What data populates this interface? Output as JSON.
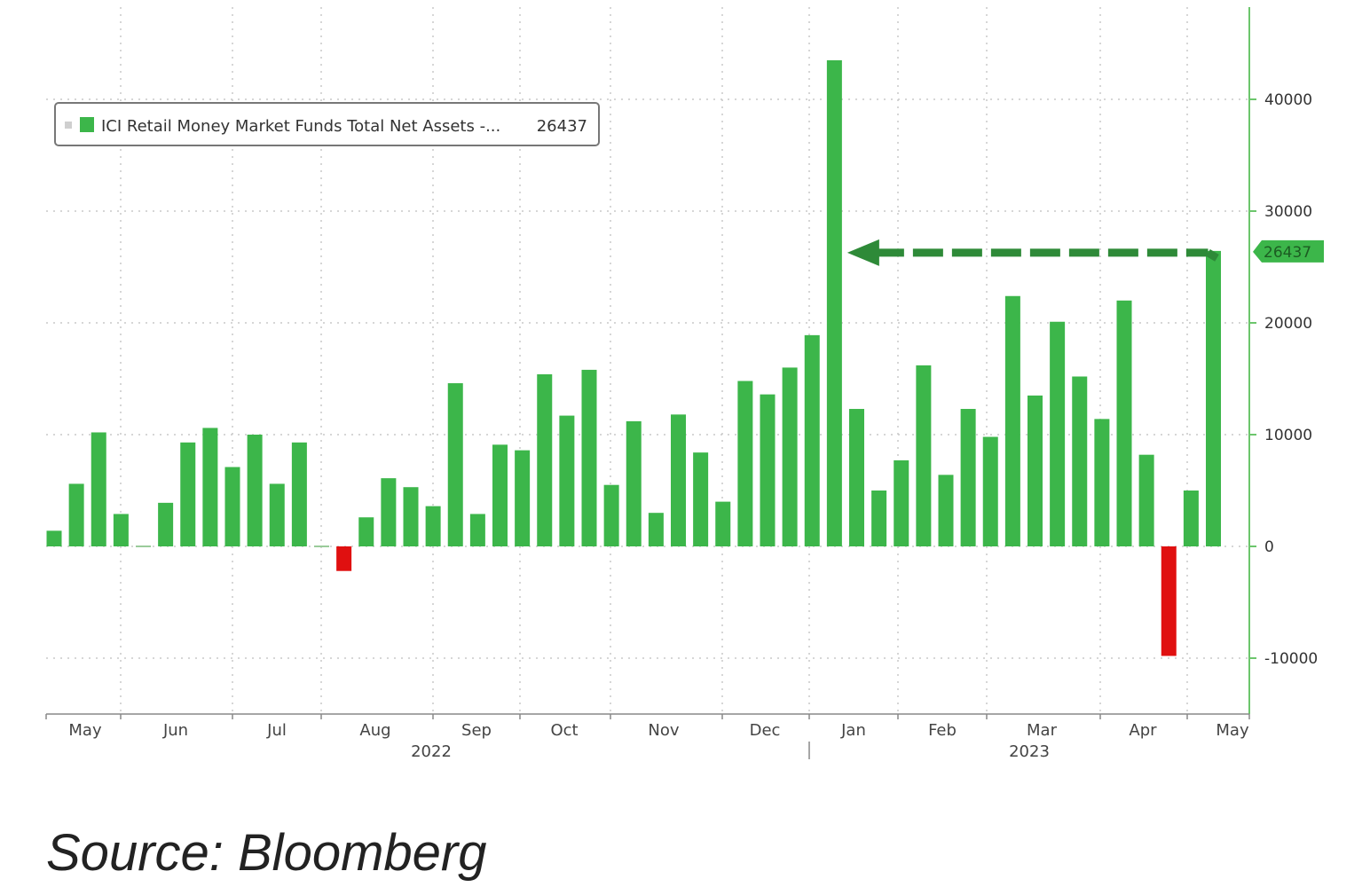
{
  "chart_data": {
    "type": "bar",
    "legend": {
      "label": "ICI Retail Money Market Funds Total Net Assets -...",
      "value": "26437",
      "placement": "top-left"
    },
    "x_month_labels": [
      "May",
      "Jun",
      "Jul",
      "Aug",
      "Sep",
      "Oct",
      "Nov",
      "Dec",
      "Jan",
      "Feb",
      "Mar",
      "Apr",
      "May"
    ],
    "x_year_labels": [
      "2022",
      "2023"
    ],
    "y_ticks": [
      40000,
      30000,
      20000,
      10000,
      0,
      -10000
    ],
    "ylim": [
      -15000,
      48000
    ],
    "y_axis_side": "right",
    "grid": true,
    "values": [
      1400,
      5600,
      10200,
      2900,
      0,
      3900,
      9300,
      10600,
      7100,
      10000,
      5600,
      9300,
      0,
      -2200,
      2600,
      6100,
      5300,
      3600,
      14600,
      2900,
      9100,
      8600,
      15400,
      11700,
      15800,
      5500,
      11200,
      3000,
      11800,
      8400,
      4000,
      14800,
      13600,
      16000,
      18900,
      43500,
      12300,
      5000,
      7700,
      16200,
      6400,
      12300,
      9800,
      22400,
      13500,
      20100,
      15200,
      11400,
      22000,
      8200,
      -9800,
      5000,
      26437
    ],
    "last_value_label": "26437",
    "annotation": "dashed arrow from latest bar to January peak",
    "colors": {
      "positive": "#3cb64a",
      "negative": "#e01010",
      "axis": "#6cc66c",
      "label_bg": "#3cb64a"
    }
  },
  "source": "Source: Bloomberg"
}
